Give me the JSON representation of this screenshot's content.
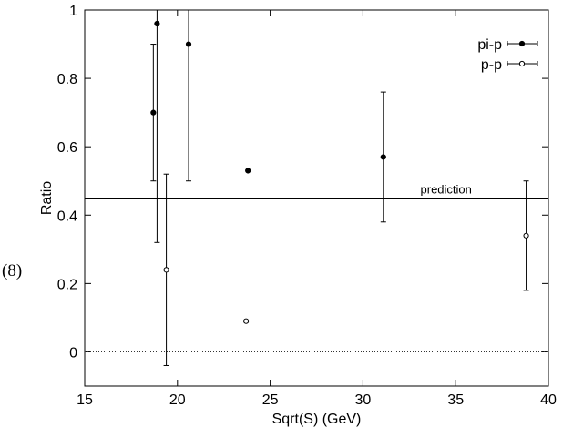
{
  "equation_label": "(8)",
  "chart_data": {
    "type": "scatter",
    "xlabel": "Sqrt(S)  (GeV)",
    "ylabel": "Ratio",
    "xlim": [
      15,
      40
    ],
    "ylim": [
      -0.1,
      1.0
    ],
    "xticks": [
      15,
      20,
      25,
      30,
      35,
      40
    ],
    "yticks": [
      0,
      0.2,
      0.4,
      0.6,
      0.8,
      1
    ],
    "ytick_labels": [
      "0",
      "0.2",
      "0.4",
      "0.6",
      "0.8",
      "1"
    ],
    "grid": false,
    "legend_position": "top-right",
    "series": [
      {
        "name": "pi-p",
        "marker": "filled-circle",
        "points": [
          {
            "x": 18.7,
            "y": 0.7,
            "ylo": 0.5,
            "yhi": 0.9
          },
          {
            "x": 18.9,
            "y": 0.96,
            "ylo": 0.32,
            "yhi": 1.0
          },
          {
            "x": 20.6,
            "y": 0.9,
            "ylo": 0.5,
            "yhi": 1.0
          },
          {
            "x": 23.8,
            "y": 0.53,
            "ylo": null,
            "yhi": null
          },
          {
            "x": 31.1,
            "y": 0.57,
            "ylo": 0.38,
            "yhi": 0.76
          }
        ]
      },
      {
        "name": "p-p",
        "marker": "open-circle",
        "points": [
          {
            "x": 19.4,
            "y": 0.24,
            "ylo": -0.04,
            "yhi": 0.52
          },
          {
            "x": 23.7,
            "y": 0.09,
            "ylo": null,
            "yhi": null
          },
          {
            "x": 38.8,
            "y": 0.34,
            "ylo": 0.18,
            "yhi": 0.5
          }
        ]
      }
    ],
    "reference_lines": [
      {
        "y": 0.45,
        "style": "solid",
        "label": "prediction"
      },
      {
        "y": 0.0,
        "style": "dotted",
        "label": ""
      }
    ]
  }
}
